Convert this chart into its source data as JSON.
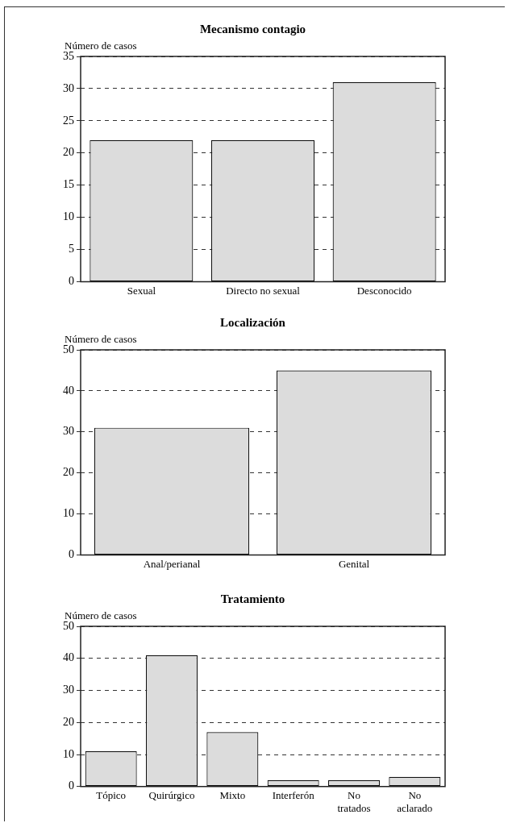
{
  "chart_data": [
    {
      "type": "bar",
      "title": "Mecanismo contagio",
      "ylabel": "Número de casos",
      "categories": [
        "Sexual",
        "Directo no sexual",
        "Desconocido"
      ],
      "values": [
        22,
        22,
        31
      ],
      "color": "#dcdcdc",
      "ylim": [
        0,
        35
      ],
      "yticks": [
        0,
        5,
        10,
        15,
        20,
        25,
        30,
        35
      ],
      "grid": "y"
    },
    {
      "type": "bar",
      "title": "Localización",
      "ylabel": "Número de casos",
      "categories": [
        "Anal/perianal",
        "Genital"
      ],
      "values": [
        31,
        45
      ],
      "color": "#dcdcdc",
      "ylim": [
        0,
        50
      ],
      "yticks": [
        0,
        10,
        20,
        30,
        40,
        50
      ],
      "grid": "y"
    },
    {
      "type": "bar",
      "title": "Tratamiento",
      "ylabel": "Número de casos",
      "categories": [
        "Tópico",
        "Quirúrgico",
        "Mixto",
        "Interferón",
        "No tratados",
        "No aclarado"
      ],
      "values": [
        11,
        41,
        17,
        2,
        2,
        3
      ],
      "color": "#dcdcdc",
      "ylim": [
        0,
        50
      ],
      "yticks": [
        0,
        10,
        20,
        30,
        40,
        50
      ],
      "grid": "y"
    }
  ]
}
